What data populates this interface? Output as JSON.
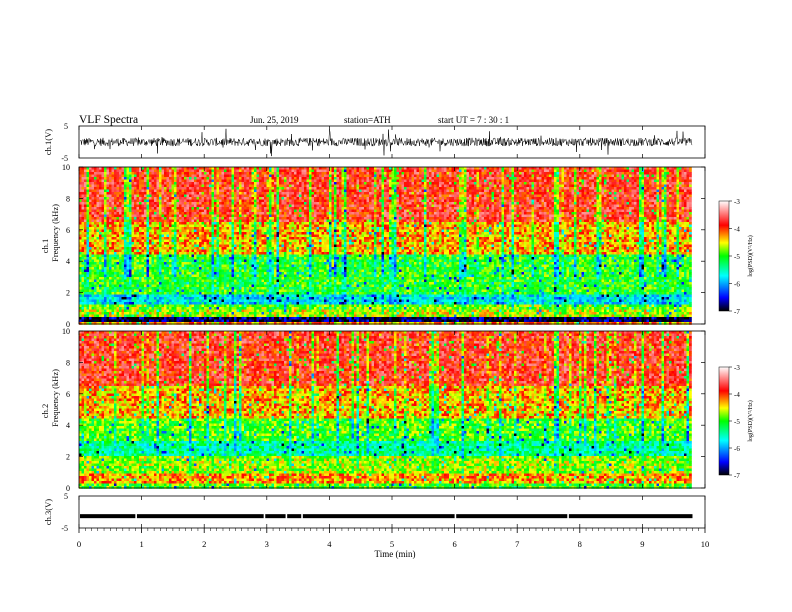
{
  "header": {
    "title": "VLF  Spectra",
    "date": "Jun. 25, 2019",
    "station": "station=ATH",
    "start": "start  UT  =   7  : 30 : 1"
  },
  "chart_data": [
    {
      "type": "line",
      "panel": "ch1-waveform",
      "ylabel": "ch.1(V)",
      "ylim": [
        -5,
        5
      ],
      "yticks": [
        "5",
        "-5"
      ],
      "xlim": [
        0,
        10
      ],
      "note_series": "dense noisy waveform, amplitude roughly -3 to 3 V, spans 0 to 9.8 min"
    },
    {
      "type": "heatmap",
      "panel": "ch1-spectrogram",
      "ylabel": "ch.1\nFrequency  (kHz)",
      "ylabel_lines": [
        "ch.1",
        "Frequency  (kHz)"
      ],
      "ylim": [
        0,
        10
      ],
      "yticks": [
        "0",
        "2",
        "4",
        "6",
        "8",
        "10"
      ],
      "xlim": [
        0,
        9.8
      ],
      "colorbar": {
        "label": "log(PSD)(V²/Hz)",
        "ticks": [
          "-3",
          "-4",
          "-5",
          "-6",
          "-7"
        ],
        "range": [
          -7,
          -3
        ]
      },
      "bands_khz": [
        {
          "from": 0.0,
          "to": 0.2,
          "level": -4.2
        },
        {
          "from": 0.2,
          "to": 0.5,
          "level": -6.8
        },
        {
          "from": 0.5,
          "to": 0.9,
          "level": -4.6
        },
        {
          "from": 0.9,
          "to": 1.3,
          "level": -4.8
        },
        {
          "from": 1.3,
          "to": 1.8,
          "level": -5.7
        },
        {
          "from": 1.8,
          "to": 2.4,
          "level": -5.0
        },
        {
          "from": 2.4,
          "to": 4.5,
          "level": -5.0
        },
        {
          "from": 4.5,
          "to": 6.5,
          "level": -4.3
        },
        {
          "from": 6.5,
          "to": 10.0,
          "level": -3.8
        }
      ]
    },
    {
      "type": "heatmap",
      "panel": "ch2-spectrogram",
      "ylabel_lines": [
        "ch.2",
        "Frequency  (kHz)"
      ],
      "ylim": [
        0,
        10
      ],
      "yticks": [
        "0",
        "2",
        "4",
        "6",
        "8",
        "10"
      ],
      "xlim": [
        0,
        9.8
      ],
      "colorbar": {
        "label": "log(PSD)(V²/Hz)",
        "ticks": [
          "-3",
          "-4",
          "-5",
          "-6",
          "-7"
        ],
        "range": [
          -7,
          -3
        ]
      },
      "bands_khz": [
        {
          "from": 0.0,
          "to": 0.3,
          "level": -4.9
        },
        {
          "from": 0.3,
          "to": 1.0,
          "level": -4.2
        },
        {
          "from": 1.0,
          "to": 2.0,
          "level": -4.7
        },
        {
          "from": 2.0,
          "to": 3.0,
          "level": -5.4
        },
        {
          "from": 3.0,
          "to": 4.5,
          "level": -4.9
        },
        {
          "from": 4.5,
          "to": 6.5,
          "level": -4.3
        },
        {
          "from": 6.5,
          "to": 10.0,
          "level": -3.8
        }
      ]
    },
    {
      "type": "line",
      "panel": "ch3-waveform",
      "ylabel": "ch.3(V)",
      "ylim": [
        -5,
        5
      ],
      "yticks": [
        "5",
        "-5"
      ],
      "xlim": [
        0,
        10
      ],
      "level_v": -1.3,
      "gaps_min": [
        0.9,
        2.95,
        3.3,
        3.55,
        6.0,
        7.8
      ]
    }
  ],
  "xaxis": {
    "label": "Time  (min)",
    "ticks": [
      "0",
      "1",
      "2",
      "3",
      "4",
      "5",
      "6",
      "7",
      "8",
      "9",
      "10"
    ],
    "range": [
      0,
      10
    ]
  },
  "colors": {
    "colormap": [
      "#000000",
      "#0000ff",
      "#00ffff",
      "#00ff00",
      "#ffff00",
      "#ff0000",
      "#ffffff"
    ]
  }
}
